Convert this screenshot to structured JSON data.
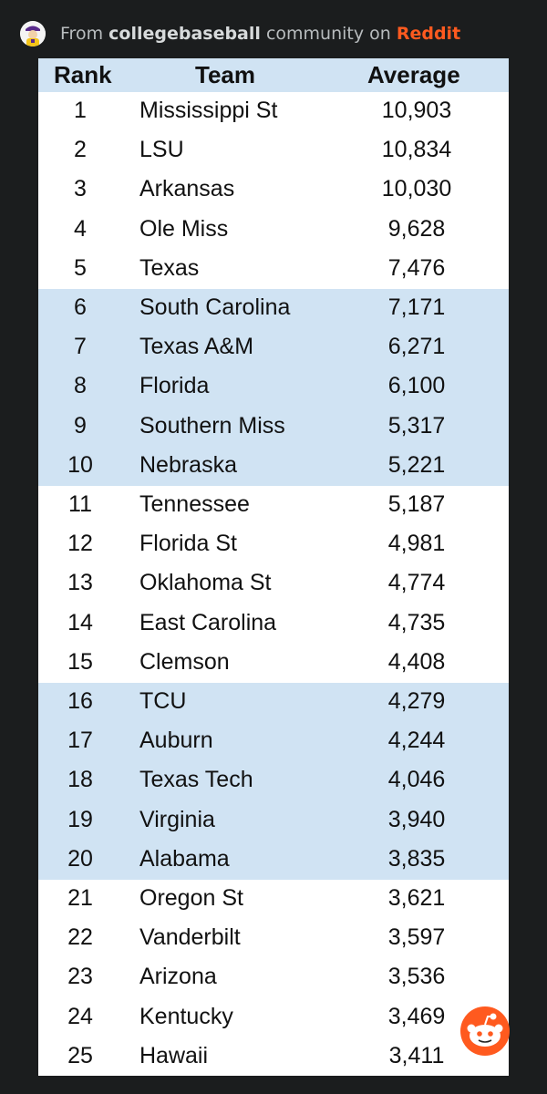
{
  "header": {
    "prefix": "From ",
    "community": "collegebaseball",
    "middle": " community on ",
    "platform": "Reddit"
  },
  "table": {
    "columns": [
      "Rank",
      "Team",
      "Average"
    ],
    "rows": [
      {
        "rank": "1",
        "team": "Mississippi St",
        "average": "10,903"
      },
      {
        "rank": "2",
        "team": "LSU",
        "average": "10,834"
      },
      {
        "rank": "3",
        "team": "Arkansas",
        "average": "10,030"
      },
      {
        "rank": "4",
        "team": "Ole Miss",
        "average": "9,628"
      },
      {
        "rank": "5",
        "team": "Texas",
        "average": "7,476"
      },
      {
        "rank": "6",
        "team": "South Carolina",
        "average": "7,171"
      },
      {
        "rank": "7",
        "team": "Texas A&M",
        "average": "6,271"
      },
      {
        "rank": "8",
        "team": "Florida",
        "average": "6,100"
      },
      {
        "rank": "9",
        "team": "Southern Miss",
        "average": "5,317"
      },
      {
        "rank": "10",
        "team": "Nebraska",
        "average": "5,221"
      },
      {
        "rank": "11",
        "team": "Tennessee",
        "average": "5,187"
      },
      {
        "rank": "12",
        "team": "Florida St",
        "average": "4,981"
      },
      {
        "rank": "13",
        "team": "Oklahoma St",
        "average": "4,774"
      },
      {
        "rank": "14",
        "team": "East Carolina",
        "average": "4,735"
      },
      {
        "rank": "15",
        "team": "Clemson",
        "average": "4,408"
      },
      {
        "rank": "16",
        "team": "TCU",
        "average": "4,279"
      },
      {
        "rank": "17",
        "team": "Auburn",
        "average": "4,244"
      },
      {
        "rank": "18",
        "team": "Texas Tech",
        "average": "4,046"
      },
      {
        "rank": "19",
        "team": "Virginia",
        "average": "3,940"
      },
      {
        "rank": "20",
        "team": "Alabama",
        "average": "3,835"
      },
      {
        "rank": "21",
        "team": "Oregon St",
        "average": "3,621"
      },
      {
        "rank": "22",
        "team": "Vanderbilt",
        "average": "3,597"
      },
      {
        "rank": "23",
        "team": "Arizona",
        "average": "3,536"
      },
      {
        "rank": "24",
        "team": "Kentucky",
        "average": "3,469"
      },
      {
        "rank": "25",
        "team": "Hawaii",
        "average": "3,411"
      }
    ]
  },
  "colors": {
    "background": "#1b1d1e",
    "band": "#d0e3f3",
    "reddit_orange": "#ff5a1f"
  },
  "icons": {
    "community_avatar": "community-avatar-icon",
    "reddit_logo": "reddit-snoo-icon"
  }
}
